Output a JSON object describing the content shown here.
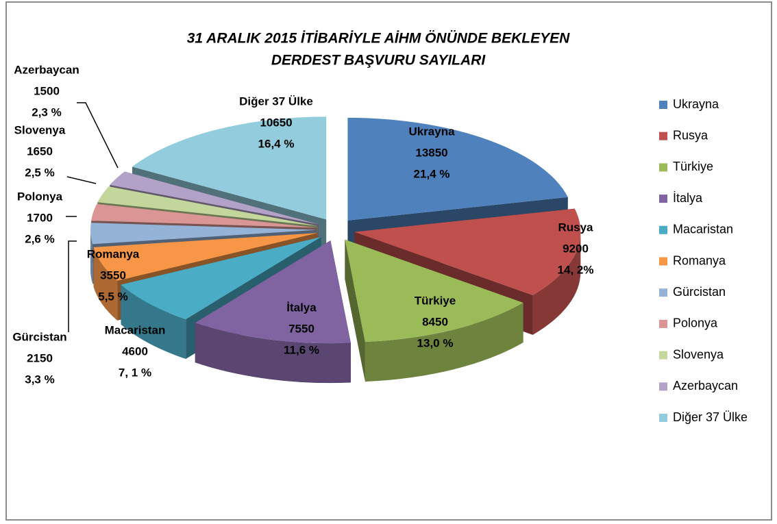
{
  "chart_data": {
    "type": "pie3d",
    "title_lines": [
      "31 ARALIK 2015 İTİBARİYLE AİHM ÖNÜNDE BEKLEYEN",
      "DERDEST BAŞVURU SAYILARI"
    ],
    "categories": [
      "Ukrayna",
      "Rusya",
      "Türkiye",
      "İtalya",
      "Macaristan",
      "Romanya",
      "Gürcistan",
      "Polonya",
      "Slovenya",
      "Azerbaycan",
      "Diğer 37 Ülke"
    ],
    "values": [
      13850,
      9200,
      8450,
      7550,
      4600,
      3550,
      2150,
      1700,
      1650,
      1500,
      10650
    ],
    "percent_labels": [
      "21,4 %",
      "14, 2%",
      "13,0 %",
      "11,6 %",
      "7, 1 %",
      "5,5 %",
      "3,3 %",
      "2,6 %",
      "2,5 %",
      "2,3 %",
      "16,4 %"
    ],
    "colors": [
      "#4f81bd",
      "#c0504d",
      "#9bbb59",
      "#8064a2",
      "#4bacc6",
      "#f79646",
      "#95b3d7",
      "#d99694",
      "#c3d69b",
      "#b3a2c7",
      "#93cddd"
    ],
    "legend": "right"
  }
}
